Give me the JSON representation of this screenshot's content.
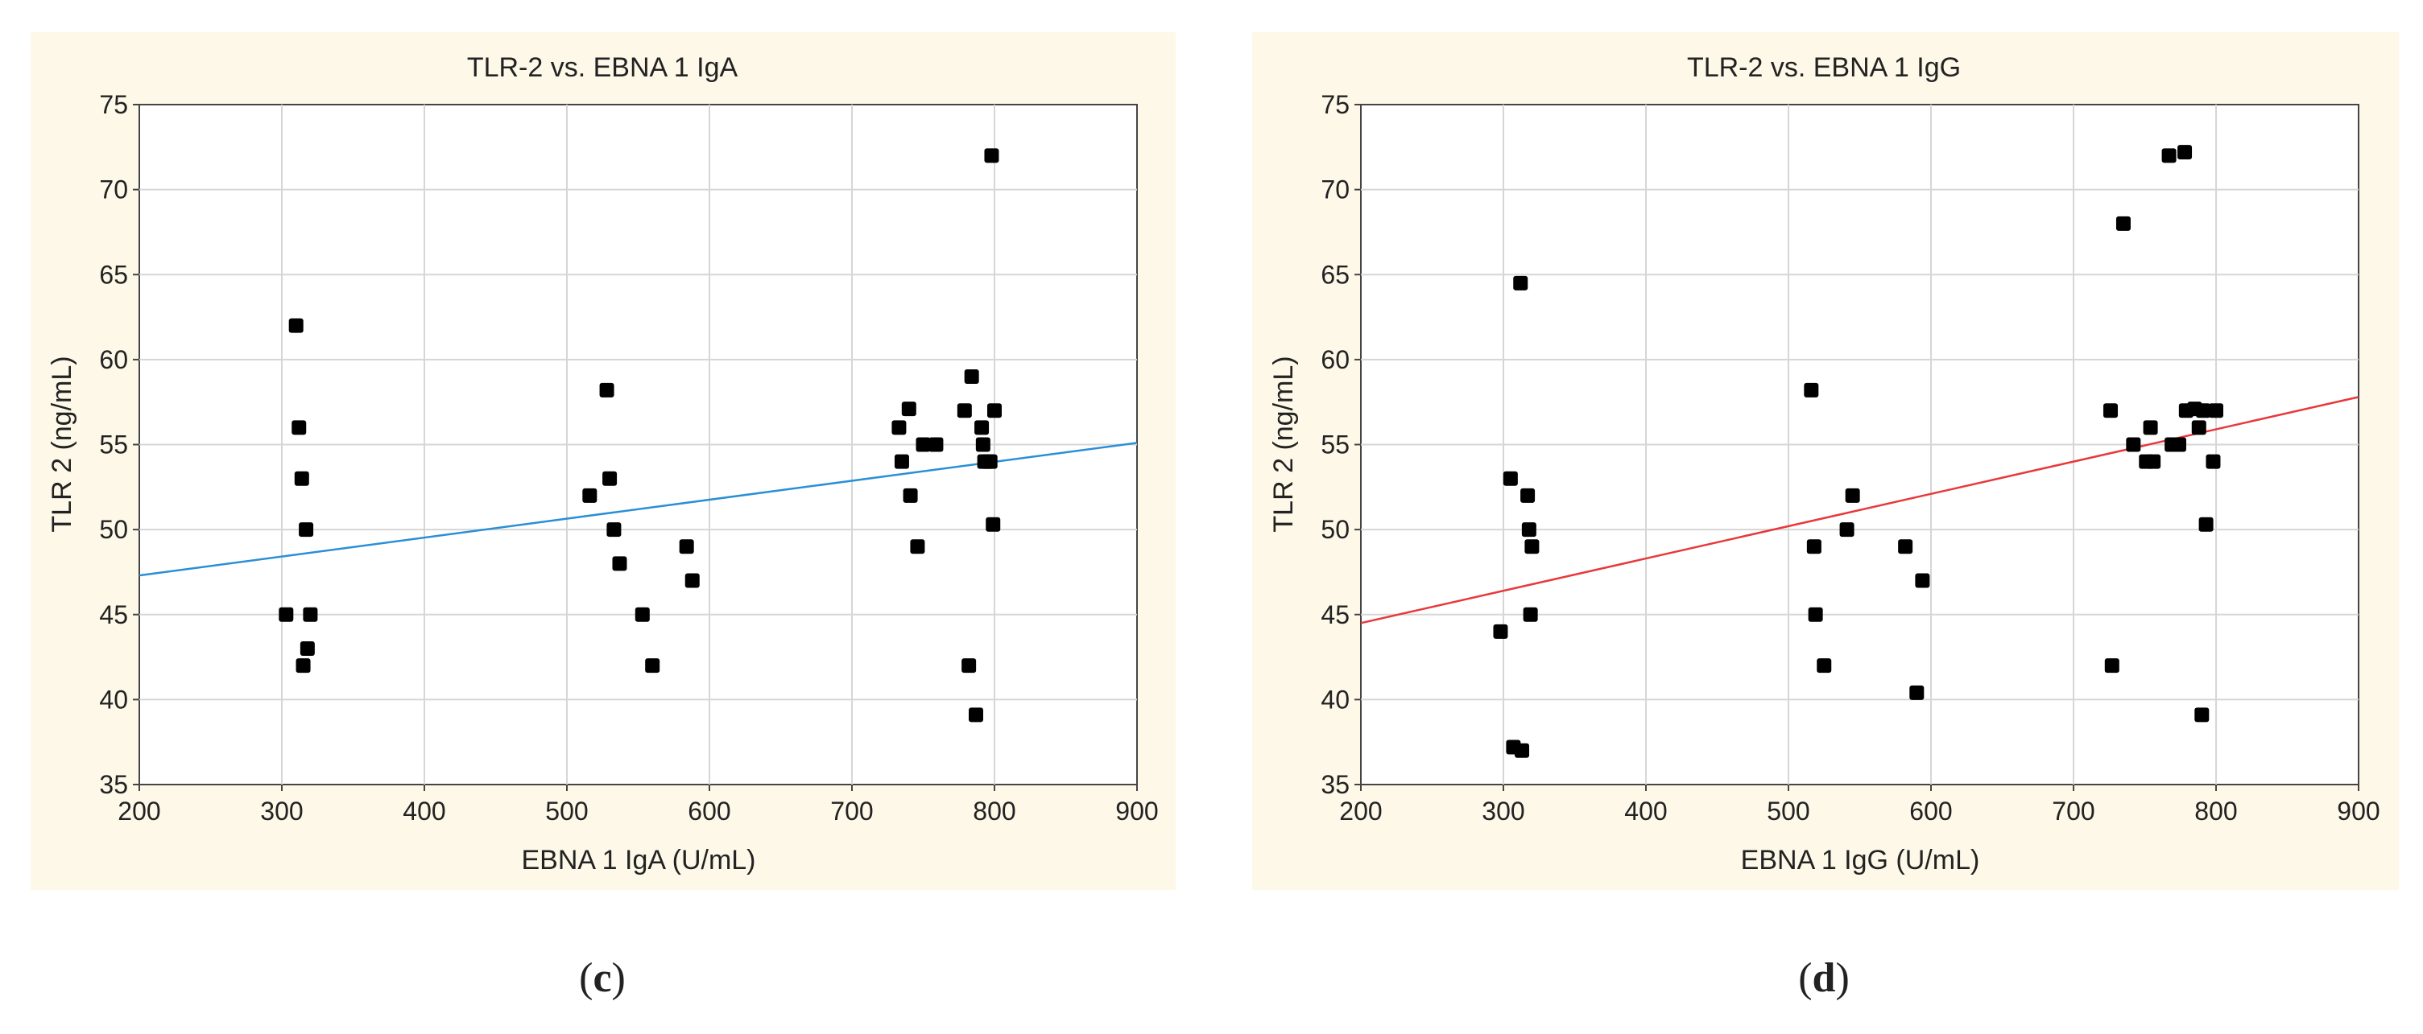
{
  "colors": {
    "panel_bg": "#fdf8e8",
    "plot_bg": "#ffffff",
    "grid": "#d6d6d6",
    "axis": "#444444",
    "point": "#000000",
    "text": "#222222"
  },
  "panels": {
    "c": {
      "caption_open": "(",
      "caption_letter": "c",
      "caption_close": ")"
    },
    "d": {
      "caption_open": "(",
      "caption_letter": "d",
      "caption_close": ")"
    }
  },
  "chart_data": [
    {
      "id": "c",
      "type": "scatter",
      "title": "TLR-2 vs. EBNA 1 IgA",
      "xlabel": "EBNA 1 IgA (U/mL)",
      "ylabel": "TLR 2 (ng/mL)",
      "xlim": [
        200,
        900
      ],
      "ylim": [
        35,
        75
      ],
      "xticks": [
        200,
        300,
        400,
        500,
        600,
        700,
        800,
        900
      ],
      "yticks": [
        35,
        40,
        45,
        50,
        55,
        60,
        65,
        70,
        75
      ],
      "grid": true,
      "line_color": "#2a8fd6",
      "fit_line": [
        [
          200,
          47.3
        ],
        [
          900,
          55.1
        ]
      ],
      "points": [
        [
          303,
          45
        ],
        [
          310,
          62
        ],
        [
          312,
          56
        ],
        [
          314,
          53
        ],
        [
          315,
          42
        ],
        [
          317,
          50
        ],
        [
          318,
          43
        ],
        [
          320,
          45
        ],
        [
          516,
          52
        ],
        [
          528,
          58.2
        ],
        [
          530,
          53
        ],
        [
          533,
          50
        ],
        [
          537,
          48
        ],
        [
          553,
          45
        ],
        [
          560,
          42
        ],
        [
          584,
          49
        ],
        [
          588,
          47
        ],
        [
          733,
          56
        ],
        [
          735,
          54
        ],
        [
          740,
          57.1
        ],
        [
          741,
          52
        ],
        [
          746,
          49
        ],
        [
          750,
          55
        ],
        [
          759,
          55
        ],
        [
          779,
          57
        ],
        [
          782,
          42
        ],
        [
          784,
          59
        ],
        [
          787,
          39.1
        ],
        [
          791,
          56
        ],
        [
          792,
          55
        ],
        [
          793,
          54
        ],
        [
          795,
          54
        ],
        [
          797,
          54
        ],
        [
          798,
          72
        ],
        [
          799,
          50.3
        ],
        [
          800,
          57
        ]
      ]
    },
    {
      "id": "d",
      "type": "scatter",
      "title": "TLR-2 vs. EBNA 1 IgG",
      "xlabel": "EBNA 1 IgG (U/mL)",
      "ylabel": "TLR 2 (ng/mL)",
      "xlim": [
        200,
        900
      ],
      "ylim": [
        35,
        75
      ],
      "xticks": [
        200,
        300,
        400,
        500,
        600,
        700,
        800,
        900
      ],
      "yticks": [
        35,
        40,
        45,
        50,
        55,
        60,
        65,
        70,
        75
      ],
      "grid": true,
      "line_color": "#e8383c",
      "fit_line": [
        [
          200,
          44.5
        ],
        [
          900,
          57.8
        ]
      ],
      "points": [
        [
          298,
          44
        ],
        [
          305,
          53
        ],
        [
          307,
          37.2
        ],
        [
          312,
          64.5
        ],
        [
          313,
          37
        ],
        [
          317,
          52
        ],
        [
          318,
          50
        ],
        [
          319,
          45
        ],
        [
          320,
          49
        ],
        [
          516,
          58.2
        ],
        [
          518,
          49
        ],
        [
          519,
          45
        ],
        [
          525,
          42
        ],
        [
          541,
          50
        ],
        [
          545,
          52
        ],
        [
          582,
          49
        ],
        [
          590,
          40.4
        ],
        [
          594,
          47
        ],
        [
          726,
          57
        ],
        [
          727,
          42
        ],
        [
          735,
          68
        ],
        [
          742,
          55
        ],
        [
          751,
          54
        ],
        [
          754,
          56
        ],
        [
          756,
          54
        ],
        [
          767,
          72
        ],
        [
          769,
          55
        ],
        [
          774,
          55
        ],
        [
          778,
          72.2
        ],
        [
          779,
          57
        ],
        [
          785,
          57.1
        ],
        [
          788,
          56
        ],
        [
          790,
          39.1
        ],
        [
          791,
          57
        ],
        [
          793,
          50.3
        ],
        [
          798,
          54
        ],
        [
          800,
          57
        ]
      ]
    }
  ]
}
